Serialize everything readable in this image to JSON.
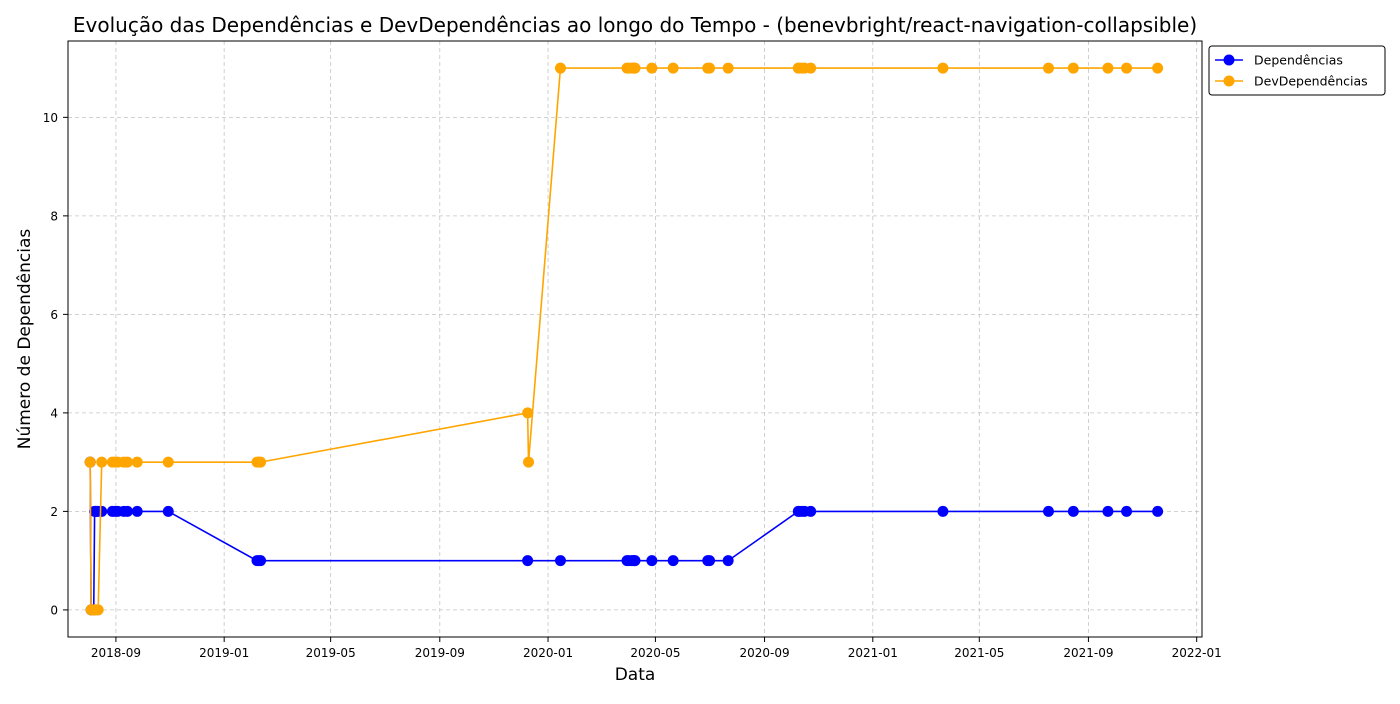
{
  "chart_data": {
    "type": "line",
    "title": "Evolução das Dependências e DevDependências ao longo do Tempo - (benevbright/react-navigation-collapsible)",
    "xlabel": "Data",
    "ylabel": "Número de Dependências",
    "xlim": [
      "2018-07-09",
      "2022-01-07"
    ],
    "ylim": [
      -0.55,
      11.55
    ],
    "x_ticks": [
      "2018-09",
      "2019-01",
      "2019-05",
      "2019-09",
      "2020-01",
      "2020-05",
      "2020-09",
      "2021-01",
      "2021-05",
      "2021-09",
      "2022-01"
    ],
    "y_ticks": [
      0,
      2,
      4,
      6,
      8,
      10
    ],
    "grid": true,
    "legend": "outside-top-right",
    "colors": {
      "Dependências": "#0000ff",
      "DevDependências": "#ffa500"
    },
    "series": [
      {
        "name": "Dependências",
        "x": [
          "2018-08-03",
          "2018-08-03",
          "2018-08-04",
          "2018-08-05",
          "2018-08-06",
          "2018-08-07",
          "2018-08-08",
          "2018-08-09",
          "2018-08-10",
          "2018-08-12",
          "2018-08-16",
          "2018-08-28",
          "2018-08-31",
          "2018-09-03",
          "2018-09-10",
          "2018-09-14",
          "2018-09-25",
          "2018-10-30",
          "2019-02-07",
          "2019-02-09",
          "2019-02-11",
          "2019-12-09",
          "2020-01-15",
          "2020-03-30",
          "2020-04-01",
          "2020-04-04",
          "2020-04-06",
          "2020-04-07",
          "2020-04-08",
          "2020-04-27",
          "2020-05-21",
          "2020-06-29",
          "2020-07-01",
          "2020-07-22",
          "2020-10-09",
          "2020-10-10",
          "2020-10-13",
          "2020-10-16",
          "2020-10-23",
          "2021-03-21",
          "2021-07-18",
          "2021-08-15",
          "2021-09-23",
          "2021-10-14",
          "2021-11-18"
        ],
        "values": [
          3,
          3,
          0,
          0,
          0,
          0,
          2,
          2,
          2,
          2,
          2,
          2,
          2,
          2,
          2,
          2,
          2,
          2,
          1,
          1,
          1,
          1,
          1,
          1,
          1,
          1,
          1,
          1,
          1,
          1,
          1,
          1,
          1,
          1,
          2,
          2,
          2,
          2,
          2,
          2,
          2,
          2,
          2,
          2,
          2
        ]
      },
      {
        "name": "DevDependências",
        "x": [
          "2018-08-03",
          "2018-08-03",
          "2018-08-04",
          "2018-08-05",
          "2018-08-06",
          "2018-08-07",
          "2018-08-08",
          "2018-08-09",
          "2018-08-10",
          "2018-08-12",
          "2018-08-16",
          "2018-08-28",
          "2018-08-31",
          "2018-09-03",
          "2018-09-10",
          "2018-09-14",
          "2018-09-25",
          "2018-10-30",
          "2019-02-07",
          "2019-02-09",
          "2019-02-11",
          "2019-12-09",
          "2019-12-10",
          "2020-01-15",
          "2020-03-30",
          "2020-04-01",
          "2020-04-04",
          "2020-04-06",
          "2020-04-07",
          "2020-04-08",
          "2020-04-27",
          "2020-05-21",
          "2020-06-29",
          "2020-07-01",
          "2020-07-22",
          "2020-10-09",
          "2020-10-10",
          "2020-10-13",
          "2020-10-16",
          "2020-10-23",
          "2021-03-21",
          "2021-07-18",
          "2021-08-15",
          "2021-09-23",
          "2021-10-14",
          "2021-11-18"
        ],
        "values": [
          3,
          3,
          0,
          0,
          0,
          0,
          0,
          0,
          0,
          0,
          3,
          3,
          3,
          3,
          3,
          3,
          3,
          3,
          3,
          3,
          3,
          4,
          3,
          11,
          11,
          11,
          11,
          11,
          11,
          11,
          11,
          11,
          11,
          11,
          11,
          11,
          11,
          11,
          11,
          11,
          11,
          11,
          11,
          11,
          11,
          11
        ]
      }
    ]
  }
}
